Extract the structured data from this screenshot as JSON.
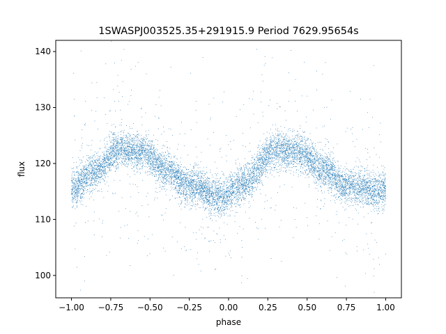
{
  "chart_data": {
    "type": "scatter",
    "title": "1SWASPJ003525.35+291915.9 Period 7629.95654s",
    "xlabel": "phase",
    "ylabel": "flux",
    "xlim": [
      -1.1,
      1.1
    ],
    "ylim": [
      96,
      142
    ],
    "x_ticks": [
      -1.0,
      -0.75,
      -0.5,
      -0.25,
      0.0,
      0.25,
      0.5,
      0.75,
      1.0
    ],
    "x_tick_labels": [
      "−1.00",
      "−0.75",
      "−0.50",
      "−0.25",
      "0.00",
      "0.25",
      "0.50",
      "0.75",
      "1.00"
    ],
    "y_ticks": [
      100,
      110,
      120,
      130,
      140
    ],
    "y_tick_labels": [
      "100",
      "110",
      "120",
      "130",
      "140"
    ],
    "grid": false,
    "legend": "none",
    "point_color": "#1f77b4",
    "phase_range": [
      -1.0,
      1.0
    ],
    "trend": {
      "description_points_x": [
        -1.0,
        -0.85,
        -0.7,
        -0.55,
        -0.4,
        -0.25,
        -0.05,
        0.1,
        0.3,
        0.45,
        0.6,
        0.75,
        0.95,
        1.0
      ],
      "description_points_y": [
        115.5,
        118.5,
        122.5,
        122.0,
        119.0,
        116.0,
        114.0,
        116.5,
        122.5,
        122.0,
        119.0,
        116.0,
        115.0,
        115.5
      ]
    }
  }
}
